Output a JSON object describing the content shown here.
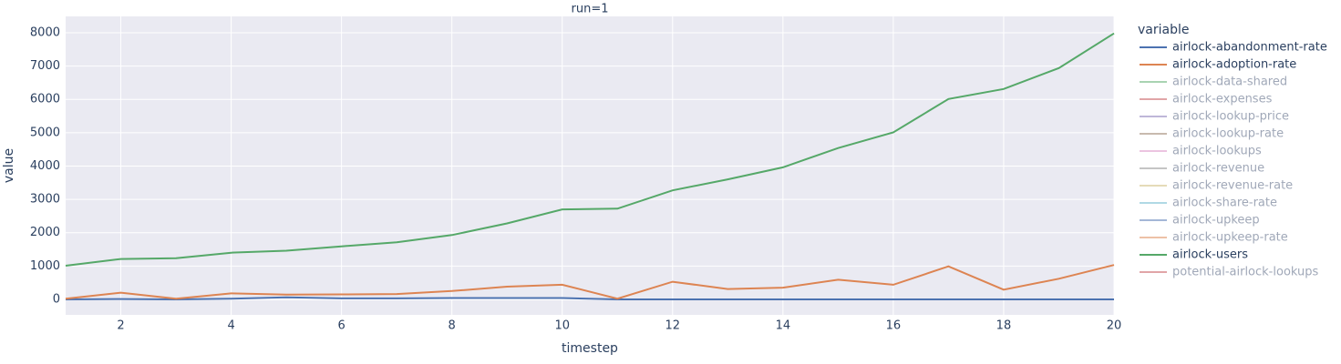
{
  "chart_data": {
    "type": "line",
    "title": "run=1",
    "x_label": "timestep",
    "y_label": "value",
    "legend_title": "variable",
    "legend_position": "right",
    "x": [
      1,
      2,
      3,
      4,
      5,
      6,
      7,
      8,
      9,
      10,
      11,
      12,
      13,
      14,
      15,
      16,
      17,
      18,
      19,
      20
    ],
    "xlim": [
      1,
      20
    ],
    "xticks": [
      2,
      4,
      6,
      8,
      10,
      12,
      14,
      16,
      18,
      20
    ],
    "ylim": [
      -465,
      8490
    ],
    "yticks": [
      0,
      1000,
      2000,
      3000,
      4000,
      5000,
      6000,
      7000,
      8000
    ],
    "grid": true,
    "series": [
      {
        "name": "airlock-abandonment-rate",
        "color": "#4c72b0",
        "values": [
          0,
          10,
          0,
          20,
          60,
          30,
          30,
          40,
          40,
          40,
          0,
          0,
          0,
          0,
          0,
          0,
          0,
          0,
          0,
          0
        ]
      },
      {
        "name": "airlock-adoption-rate",
        "color": "#dd8452",
        "values": [
          20,
          200,
          20,
          180,
          140,
          150,
          160,
          250,
          380,
          440,
          20,
          530,
          310,
          350,
          590,
          440,
          990,
          290,
          620,
          1030
        ]
      },
      {
        "name": "airlock-data-shared",
        "color": "#55a868",
        "visible": "legendonly"
      },
      {
        "name": "airlock-expenses",
        "color": "#c44e52",
        "visible": "legendonly"
      },
      {
        "name": "airlock-lookup-price",
        "color": "#8172b3",
        "visible": "legendonly"
      },
      {
        "name": "airlock-lookup-rate",
        "color": "#937860",
        "visible": "legendonly"
      },
      {
        "name": "airlock-lookups",
        "color": "#da8bc3",
        "visible": "legendonly"
      },
      {
        "name": "airlock-revenue",
        "color": "#8c8c8c",
        "visible": "legendonly"
      },
      {
        "name": "airlock-revenue-rate",
        "color": "#ccb974",
        "visible": "legendonly"
      },
      {
        "name": "airlock-share-rate",
        "color": "#64b5cd",
        "visible": "legendonly"
      },
      {
        "name": "airlock-upkeep",
        "color": "#4c72b0",
        "visible": "legendonly"
      },
      {
        "name": "airlock-upkeep-rate",
        "color": "#dd8452",
        "visible": "legendonly"
      },
      {
        "name": "airlock-users",
        "color": "#55a868",
        "values": [
          1010,
          1210,
          1235,
          1400,
          1460,
          1590,
          1710,
          1930,
          2280,
          2700,
          2720,
          3270,
          3600,
          3960,
          4540,
          5010,
          6010,
          6310,
          6940,
          7980
        ]
      },
      {
        "name": "potential-airlock-lookups",
        "color": "#c44e52",
        "visible": "legendonly"
      }
    ]
  }
}
